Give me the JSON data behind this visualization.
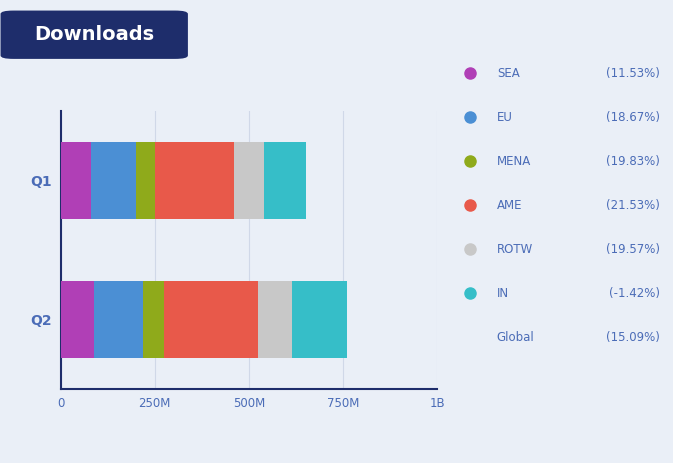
{
  "title": "Downloads",
  "background_color": "#eaeff7",
  "title_bg_color": "#1e2d6b",
  "title_text_color": "#ffffff",
  "categories": [
    "Q2",
    "Q1"
  ],
  "segments": [
    "SEA",
    "EU",
    "MENA",
    "AME",
    "ROTW",
    "IN"
  ],
  "colors": {
    "SEA": "#b03fb6",
    "EU": "#4b8fd4",
    "MENA": "#8faa1b",
    "AME": "#e8594a",
    "ROTW": "#c8c8c8",
    "IN": "#36bec8"
  },
  "legend_labels": [
    "SEA",
    "EU",
    "MENA",
    "AME",
    "ROTW",
    "IN"
  ],
  "legend_pcts": [
    "(11.53%)",
    "(18.67%)",
    "(19.83%)",
    "(21.53%)",
    "(19.57%)",
    "(-1.42%)"
  ],
  "global_label": "Global",
  "global_pct": "(15.09%)",
  "text_color": "#4b6cb7",
  "Q1": {
    "SEA": 80,
    "EU": 120,
    "MENA": 50,
    "AME": 210,
    "ROTW": 80,
    "IN": 110
  },
  "Q2": {
    "SEA": 90,
    "EU": 130,
    "MENA": 55,
    "AME": 250,
    "ROTW": 90,
    "IN": 145
  },
  "xlim": [
    0,
    1000
  ],
  "xticks": [
    0,
    250,
    500,
    750,
    1000
  ],
  "xtick_labels": [
    "0",
    "250M",
    "500M",
    "750M",
    "1B"
  ],
  "bar_height": 0.55,
  "ax_label_color": "#4b6cb7",
  "grid_color": "#d0d8e8",
  "spine_color": "#1e2d6b",
  "figsize": [
    6.73,
    4.63
  ],
  "dpi": 100
}
